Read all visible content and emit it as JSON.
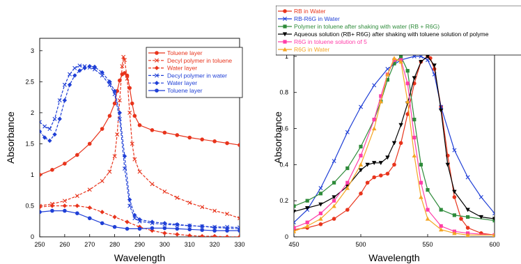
{
  "chart_data": [
    {
      "type": "line",
      "xlabel": "Wavelength",
      "ylabel": "Absorbance",
      "xlim": [
        250,
        330
      ],
      "ylim": [
        0,
        3.2
      ],
      "xticks": [
        "250",
        "260",
        "270",
        "280",
        "290",
        "300",
        "310",
        "320",
        "330"
      ],
      "yticks": [
        "0",
        "0.5",
        "1",
        "1.5",
        "2",
        "2.5",
        "3"
      ],
      "legend_position": "top-right",
      "series": [
        {
          "name": "Toluene layer",
          "color": "#e8341c",
          "marker": "circle",
          "dash": "solid",
          "x": [
            250,
            255,
            260,
            265,
            270,
            275,
            278,
            280,
            281,
            282,
            283,
            284,
            285,
            286,
            287,
            288,
            290,
            295,
            300,
            305,
            310,
            315,
            320,
            325,
            330
          ],
          "y": [
            1.0,
            1.08,
            1.18,
            1.32,
            1.5,
            1.74,
            1.95,
            2.15,
            2.35,
            2.52,
            2.62,
            2.64,
            2.6,
            2.4,
            2.15,
            1.95,
            1.8,
            1.72,
            1.68,
            1.64,
            1.6,
            1.57,
            1.54,
            1.51,
            1.48
          ]
        },
        {
          "name": "Decyl polymer in toluene",
          "color": "#e8341c",
          "marker": "x",
          "dash": "4,2",
          "x": [
            250,
            255,
            260,
            265,
            270,
            275,
            278,
            280,
            281,
            282,
            283,
            283.5,
            284,
            285,
            286,
            287,
            288,
            290,
            295,
            300,
            305,
            310,
            315,
            320,
            325,
            330
          ],
          "y": [
            0.5,
            0.53,
            0.58,
            0.66,
            0.76,
            0.9,
            1.05,
            1.3,
            1.65,
            2.2,
            2.75,
            2.9,
            2.85,
            2.55,
            2.0,
            1.5,
            1.25,
            1.05,
            0.85,
            0.73,
            0.63,
            0.55,
            0.48,
            0.42,
            0.37,
            0.3
          ]
        },
        {
          "name": "Water layer",
          "color": "#e8341c",
          "marker": "diamond",
          "dash": "4,2",
          "x": [
            250,
            255,
            260,
            265,
            270,
            275,
            280,
            285,
            290,
            295,
            300,
            305,
            310,
            315,
            320,
            325,
            330
          ],
          "y": [
            0.48,
            0.5,
            0.5,
            0.5,
            0.47,
            0.4,
            0.32,
            0.24,
            0.16,
            0.1,
            0.06,
            0.04,
            0.02,
            0.01,
            0.01,
            0.0,
            0.0
          ]
        },
        {
          "name": "Decyl polymer in water",
          "color": "#1f3fd6",
          "marker": "x",
          "dash": "4,2",
          "x": [
            250,
            252,
            254,
            256,
            258,
            260,
            262,
            264,
            266,
            268,
            270,
            272,
            275,
            278,
            280,
            282,
            284,
            286,
            288,
            290,
            295,
            300,
            305,
            310,
            315,
            320,
            325,
            330
          ],
          "y": [
            1.85,
            1.78,
            1.74,
            1.9,
            2.2,
            2.45,
            2.62,
            2.72,
            2.76,
            2.75,
            2.73,
            2.7,
            2.6,
            2.45,
            2.3,
            1.9,
            1.1,
            0.5,
            0.3,
            0.25,
            0.22,
            0.2,
            0.19,
            0.18,
            0.17,
            0.16,
            0.16,
            0.15
          ]
        },
        {
          "name": "Water layer",
          "color": "#1f3fd6",
          "marker": "diamond",
          "dash": "4,2",
          "x": [
            250,
            252,
            254,
            256,
            258,
            260,
            262,
            264,
            266,
            268,
            270,
            272,
            275,
            278,
            280,
            282,
            284,
            286,
            288,
            290,
            295,
            300,
            305,
            310,
            315,
            320,
            325,
            330
          ],
          "y": [
            1.7,
            1.6,
            1.55,
            1.65,
            1.9,
            2.2,
            2.45,
            2.6,
            2.68,
            2.72,
            2.75,
            2.74,
            2.65,
            2.5,
            2.35,
            2.0,
            1.3,
            0.6,
            0.35,
            0.28,
            0.24,
            0.22,
            0.2,
            0.18,
            0.17,
            0.15,
            0.14,
            0.13
          ]
        },
        {
          "name": "Toluene layer",
          "color": "#1f3fd6",
          "marker": "circle",
          "dash": "solid",
          "x": [
            250,
            255,
            260,
            265,
            270,
            275,
            280,
            285,
            290,
            295,
            300,
            305,
            310,
            315,
            320,
            325,
            330
          ],
          "y": [
            0.4,
            0.42,
            0.42,
            0.38,
            0.3,
            0.22,
            0.16,
            0.13,
            0.13,
            0.14,
            0.14,
            0.13,
            0.12,
            0.11,
            0.1,
            0.1,
            0.1
          ]
        }
      ]
    },
    {
      "type": "line",
      "xlabel": "Wavelength",
      "ylabel": "Absorbance",
      "xlim": [
        450,
        600
      ],
      "ylim": [
        0,
        1.1
      ],
      "xticks": [
        "450",
        "500",
        "550",
        "600"
      ],
      "yticks": [
        "0",
        "0.2",
        "0.4",
        "0.6",
        "0.8",
        "1"
      ],
      "legend_position": "top",
      "series": [
        {
          "name": "RB in Water",
          "color": "#e8341c",
          "marker": "circle",
          "dash": "solid",
          "x": [
            450,
            460,
            470,
            480,
            490,
            500,
            505,
            510,
            515,
            520,
            525,
            530,
            535,
            540,
            545,
            550,
            552,
            555,
            560,
            565,
            570,
            575,
            580,
            590,
            600
          ],
          "y": [
            0.04,
            0.05,
            0.07,
            0.1,
            0.15,
            0.24,
            0.3,
            0.33,
            0.34,
            0.35,
            0.4,
            0.52,
            0.68,
            0.85,
            0.97,
            1.0,
            0.99,
            0.93,
            0.72,
            0.45,
            0.22,
            0.1,
            0.05,
            0.02,
            0.01
          ]
        },
        {
          "name": "RB-R6G in Water",
          "color": "#1f3fd6",
          "marker": "x",
          "dash": "solid",
          "x": [
            450,
            460,
            470,
            480,
            490,
            500,
            510,
            520,
            530,
            540,
            545,
            550,
            555,
            560,
            570,
            580,
            590,
            600
          ],
          "y": [
            0.08,
            0.15,
            0.27,
            0.42,
            0.58,
            0.72,
            0.84,
            0.93,
            0.98,
            1.0,
            1.0,
            0.98,
            0.9,
            0.72,
            0.48,
            0.33,
            0.22,
            0.13
          ]
        },
        {
          "name": "Polymer in toluene after shaking with water (RB + R6G)",
          "color": "#2e8b3a",
          "marker": "square",
          "dash": "solid",
          "x": [
            450,
            460,
            470,
            480,
            490,
            500,
            510,
            515,
            520,
            525,
            530,
            535,
            540,
            545,
            550,
            560,
            570,
            580,
            600
          ],
          "y": [
            0.17,
            0.2,
            0.24,
            0.3,
            0.38,
            0.5,
            0.65,
            0.75,
            0.87,
            0.96,
            1.0,
            0.92,
            0.65,
            0.4,
            0.26,
            0.15,
            0.12,
            0.11,
            0.09
          ]
        },
        {
          "name": "Aqueous solution (RB+ R6G) after shaking with toluene solution of polyme",
          "color": "#000000",
          "marker": "triangle-down",
          "dash": "solid",
          "x": [
            450,
            460,
            470,
            480,
            490,
            500,
            505,
            510,
            515,
            520,
            525,
            530,
            535,
            540,
            545,
            550,
            555,
            560,
            565,
            570,
            580,
            590,
            600
          ],
          "y": [
            0.14,
            0.16,
            0.18,
            0.22,
            0.28,
            0.37,
            0.4,
            0.41,
            0.41,
            0.44,
            0.52,
            0.62,
            0.74,
            0.88,
            0.97,
            1.0,
            0.95,
            0.7,
            0.4,
            0.25,
            0.15,
            0.11,
            0.1
          ]
        },
        {
          "name": "R6G in toluene solution of 5",
          "color": "#ff3da8",
          "marker": "square",
          "dash": "solid",
          "x": [
            450,
            460,
            470,
            480,
            490,
            500,
            510,
            515,
            520,
            525,
            530,
            535,
            540,
            545,
            550,
            560,
            570,
            580,
            600
          ],
          "y": [
            0.05,
            0.08,
            0.13,
            0.2,
            0.3,
            0.45,
            0.65,
            0.78,
            0.9,
            0.98,
            0.98,
            0.85,
            0.55,
            0.3,
            0.15,
            0.06,
            0.03,
            0.02,
            0.01
          ]
        },
        {
          "name": "R6G in Water",
          "color": "#f5a623",
          "marker": "triangle-up",
          "dash": "solid",
          "x": [
            450,
            460,
            470,
            480,
            490,
            500,
            510,
            515,
            520,
            525,
            530,
            535,
            540,
            545,
            550,
            560,
            570,
            580,
            600
          ],
          "y": [
            0.03,
            0.06,
            0.1,
            0.17,
            0.27,
            0.4,
            0.6,
            0.75,
            0.9,
            0.99,
            0.97,
            0.75,
            0.45,
            0.22,
            0.1,
            0.04,
            0.02,
            0.01,
            0.01
          ]
        }
      ]
    }
  ]
}
